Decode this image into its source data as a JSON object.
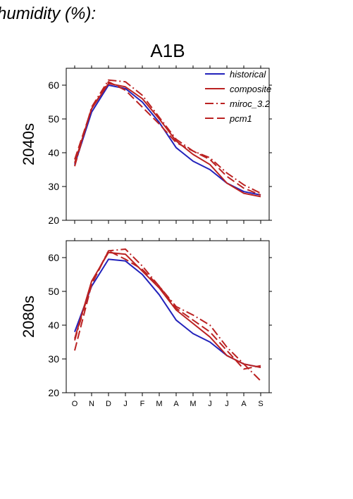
{
  "figure": {
    "title_fragment": "humidity (%):",
    "scenario": "A1B"
  },
  "colors": {
    "historical": "#2222bb",
    "models": "#bb2222",
    "axes": "#000000"
  },
  "chart_data": [
    {
      "type": "line",
      "row_label": "2040s",
      "categories": [
        "O",
        "N",
        "D",
        "J",
        "F",
        "M",
        "A",
        "M",
        "J",
        "J",
        "A",
        "S"
      ],
      "ylim": [
        20,
        65
      ],
      "yticks": [
        20,
        30,
        40,
        50,
        60
      ],
      "grid": false,
      "legend_position": "top-right",
      "series": [
        {
          "name": "historical",
          "style": "solid",
          "color": "#2222bb",
          "values": [
            36.5,
            52.0,
            60.0,
            59.0,
            55.0,
            49.0,
            41.5,
            37.5,
            35.0,
            31.0,
            28.5,
            27.5
          ]
        },
        {
          "name": "composite",
          "style": "solid",
          "color": "#bb2222",
          "values": [
            37.0,
            53.0,
            60.5,
            59.5,
            56.0,
            50.0,
            43.5,
            39.5,
            36.5,
            31.0,
            28.0,
            27.0
          ]
        },
        {
          "name": "miroc_3.2",
          "style": "dashdot",
          "color": "#bb2222",
          "values": [
            36.0,
            53.5,
            61.5,
            61.0,
            57.0,
            50.5,
            44.0,
            40.5,
            38.5,
            34.0,
            30.5,
            28.0
          ]
        },
        {
          "name": "pcm1",
          "style": "dash",
          "color": "#bb2222",
          "values": [
            38.0,
            53.0,
            61.0,
            58.5,
            53.5,
            48.5,
            43.0,
            40.5,
            38.0,
            33.0,
            29.5,
            27.5
          ]
        }
      ]
    },
    {
      "type": "line",
      "row_label": "2080s",
      "categories": [
        "O",
        "N",
        "D",
        "J",
        "F",
        "M",
        "A",
        "M",
        "J",
        "J",
        "A",
        "S"
      ],
      "ylim": [
        20,
        65
      ],
      "yticks": [
        20,
        30,
        40,
        50,
        60
      ],
      "grid": false,
      "series": [
        {
          "name": "historical",
          "style": "solid",
          "color": "#2222bb",
          "values": [
            38.0,
            51.5,
            59.5,
            59.0,
            55.0,
            49.0,
            41.5,
            37.5,
            35.0,
            31.0,
            28.5,
            27.5
          ]
        },
        {
          "name": "composite",
          "style": "solid",
          "color": "#bb2222",
          "values": [
            36.0,
            53.0,
            61.5,
            61.0,
            56.0,
            51.0,
            44.5,
            40.5,
            36.5,
            31.0,
            28.5,
            27.5
          ]
        },
        {
          "name": "miroc_3.2",
          "style": "dashdot",
          "color": "#bb2222",
          "values": [
            35.5,
            52.5,
            62.0,
            62.5,
            57.5,
            51.5,
            45.5,
            43.0,
            40.0,
            33.5,
            28.5,
            23.5
          ]
        },
        {
          "name": "pcm1",
          "style": "dash",
          "color": "#bb2222",
          "values": [
            32.5,
            52.0,
            62.0,
            59.5,
            56.5,
            51.5,
            45.0,
            41.5,
            38.0,
            32.5,
            27.0,
            28.0
          ]
        }
      ]
    }
  ]
}
